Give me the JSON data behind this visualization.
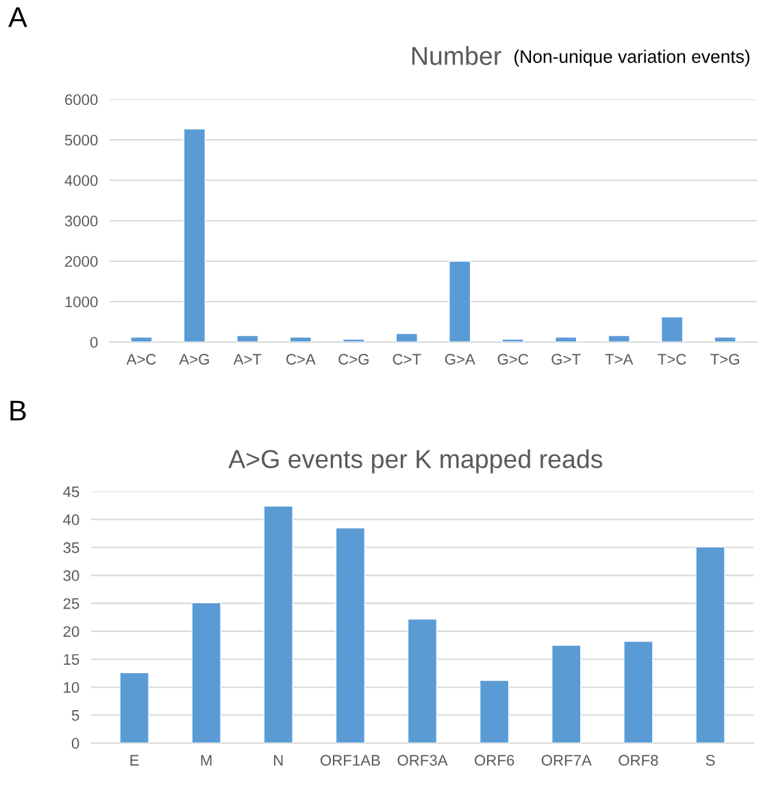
{
  "chart_data": [
    {
      "type": "bar",
      "title": "Number",
      "subtitle": "(Non-unique variation events)",
      "annotations": [
        "A"
      ],
      "categories": [
        "A>C",
        "A>G",
        "A>T",
        "C>A",
        "C>G",
        "C>T",
        "G>A",
        "G>C",
        "G>T",
        "T>A",
        "T>C",
        "T>G"
      ],
      "values": [
        120,
        5270,
        160,
        120,
        70,
        210,
        2000,
        70,
        120,
        160,
        620,
        120
      ],
      "color": "#5b9bd5",
      "ylim": [
        0,
        6000
      ],
      "yticks": [
        0,
        1000,
        2000,
        3000,
        4000,
        5000,
        6000
      ],
      "grid": "y"
    },
    {
      "type": "bar",
      "title": "A>G events per K mapped reads",
      "annotations": [
        "B"
      ],
      "categories": [
        "E",
        "M",
        "N",
        "ORF1AB",
        "ORF3A",
        "ORF6",
        "ORF7A",
        "ORF8",
        "S"
      ],
      "values": [
        12.6,
        25.1,
        42.4,
        38.5,
        22.2,
        11.2,
        17.5,
        18.2,
        35.1
      ],
      "color": "#5b9bd5",
      "ylim": [
        0,
        45
      ],
      "yticks": [
        0,
        5,
        10,
        15,
        20,
        25,
        30,
        35,
        40,
        45
      ],
      "grid": "y"
    }
  ]
}
